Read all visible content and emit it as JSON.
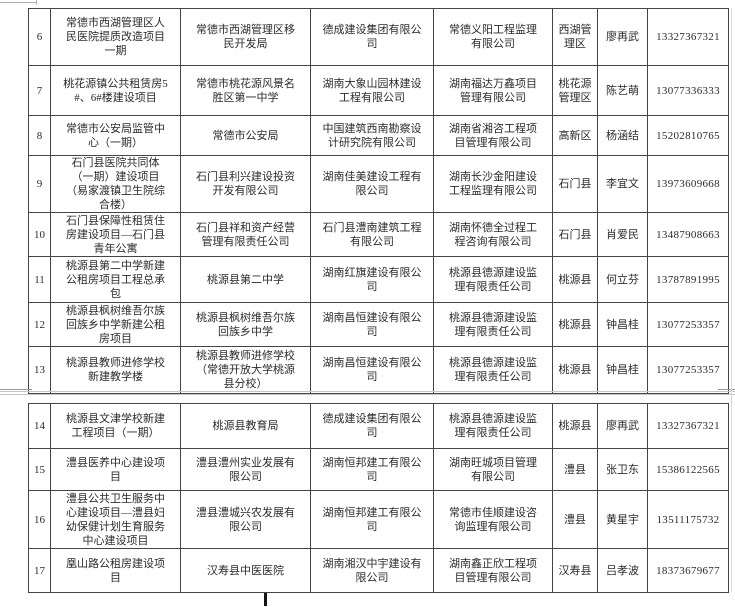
{
  "ui": {
    "background_color": "#ffffff",
    "table_border_color": "#454545",
    "text_color": "#2b2b2b",
    "pagebreak_line_color": "#c6c6c6"
  },
  "tables": [
    {
      "rows": [
        [
          "6",
          "常德市西湖管理区人民医院提质改造项目一期",
          "常德市西湖管理区移民开发局",
          "德成建设集团有限公司",
          "常德义阳工程监理有限公司",
          "西湖管理区",
          "廖再武",
          "13327367321"
        ],
        [
          "7",
          "桃花源镇公共租赁房5#、6#楼建设项目",
          "常德市桃花源风景名胜区第一中学",
          "湖南大象山园林建设工程有限公司",
          "湖南福达万鑫项目管理有限公司",
          "桃花源管理区",
          "陈艺萌",
          "13077336333"
        ],
        [
          "8",
          "常德市公安局监管中心（一期）",
          "常德市公安局",
          "中国建筑西南勘察设计研究院有限公司",
          "湖南省湘咨工程项目管理有限公司",
          "高新区",
          "杨涵结",
          "15202810765"
        ],
        [
          "9",
          "石门县医院共同体（一期）建设项目（易家渡镇卫生院综合楼）",
          "石门县利兴建设投资开发有限公司",
          "湖南佳美建设工程有限公司",
          "湖南长沙金阳建设工程监理有限公司",
          "石门县",
          "李宜文",
          "13973609668"
        ],
        [
          "10",
          "石门县保障性租赁住房建设项目—石门县青年公寓",
          "石门县祥和资产经营管理有限责任公司",
          "石门县澧南建筑工程有限公司",
          "湖南怀德全过程工程咨询有限公司",
          "石门县",
          "肖爱民",
          "13487908663"
        ],
        [
          "11",
          "桃源县第二中学新建公租房项目工程总承包",
          "桃源县第二中学",
          "湖南红旗建设有限公司",
          "桃源县德源建设监理有限责任公司",
          "桃源县",
          "何立芬",
          "13787891995"
        ],
        [
          "12",
          "桃源县枫树维吾尔族回族乡中学新建公租房项目",
          "桃源县枫树维吾尔族回族乡中学",
          "湖南昌恒建设有限公司",
          "桃源县德源建设监理有限责任公司",
          "桃源县",
          "钟昌桂",
          "13077253357"
        ],
        [
          "13",
          "桃源县教师进修学校新建教学楼",
          "桃源县教师进修学校（常德开放大学桃源县分校）",
          "湖南昌恒建设有限公司",
          "桃源县德源建设监理有限责任公司",
          "桃源县",
          "钟昌桂",
          "13077253357"
        ]
      ]
    },
    {
      "rows": [
        [
          "14",
          "桃源县文津学校新建工程项目（一期）",
          "桃源县教育局",
          "德成建设集团有限公司",
          "桃源县德源建设监理有限责任公司",
          "桃源县",
          "廖再武",
          "13327367321"
        ],
        [
          "15",
          "澧县医养中心建设项目",
          "澧县澧州实业发展有限公司",
          "湖南恒邦建工有限公司",
          "湖南旺城项目管理有限公司",
          "澧县",
          "张卫东",
          "15386122565"
        ],
        [
          "16",
          "澧县公共卫生服务中心建设项目—澧县妇幼保健计划生育服务中心建设项目",
          "澧县澧城兴农发展有限公司",
          "湖南恒邦建工有限公司",
          "常德市佳顺建设咨询监理有限公司",
          "澧县",
          "黄星宇",
          "13511175732"
        ],
        [
          "17",
          "凰山路公租房建设项目",
          "汉寿县中医医院",
          "湖南湘汉中宇建设有限公司",
          "湖南鑫正欣工程项目管理有限公司",
          "汉寿县",
          "吕孝波",
          "18373679677"
        ]
      ]
    }
  ]
}
